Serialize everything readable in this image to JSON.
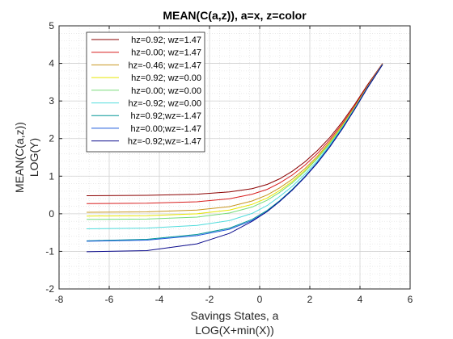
{
  "chart_data": {
    "type": "line",
    "title": "MEAN(C(a,z)), a=x, z=color",
    "xlabel": [
      "Savings States, a",
      "LOG(X+min(X))"
    ],
    "ylabel": [
      "MEAN(C(a,z))",
      "LOG(Y)"
    ],
    "xlim": [
      -8,
      6
    ],
    "ylim": [
      -2,
      5
    ],
    "xticks": [
      -8,
      -6,
      -4,
      -2,
      0,
      2,
      4,
      6
    ],
    "yticks": [
      -2,
      -1,
      0,
      1,
      2,
      3,
      4,
      5
    ],
    "grid": "on (major + minor)",
    "legend_position": "top-left",
    "x": [
      -6.9,
      -4.5,
      -2.5,
      -1.2,
      -0.3,
      0.3,
      0.8,
      1.3,
      1.8,
      2.3,
      2.8,
      3.3,
      3.8,
      4.3,
      4.9
    ],
    "series": [
      {
        "name": "hz=0.92; wz=1.47",
        "color": "#8b0000",
        "values": [
          0.48,
          0.49,
          0.52,
          0.58,
          0.67,
          0.78,
          0.93,
          1.13,
          1.38,
          1.68,
          2.03,
          2.45,
          2.92,
          3.43,
          4.0
        ]
      },
      {
        "name": "hz=0.00; wz=1.47",
        "color": "#d81e1e",
        "values": [
          0.27,
          0.28,
          0.32,
          0.4,
          0.52,
          0.65,
          0.82,
          1.03,
          1.29,
          1.6,
          1.97,
          2.4,
          2.88,
          3.4,
          3.99
        ]
      },
      {
        "name": "hz=-0.46; wz=1.47",
        "color": "#c8961e",
        "values": [
          0.04,
          0.05,
          0.1,
          0.19,
          0.34,
          0.5,
          0.69,
          0.92,
          1.2,
          1.53,
          1.92,
          2.36,
          2.85,
          3.38,
          3.98
        ]
      },
      {
        "name": "hz=0.92; wz=0.00",
        "color": "#e6e600",
        "values": [
          -0.06,
          -0.05,
          0.0,
          0.1,
          0.25,
          0.42,
          0.62,
          0.86,
          1.15,
          1.49,
          1.89,
          2.34,
          2.84,
          3.37,
          3.98
        ]
      },
      {
        "name": "hz=0.00; wz=0.00",
        "color": "#78dc78",
        "values": [
          -0.15,
          -0.14,
          -0.09,
          0.02,
          0.18,
          0.36,
          0.57,
          0.82,
          1.12,
          1.47,
          1.87,
          2.32,
          2.83,
          3.37,
          3.98
        ]
      },
      {
        "name": "hz=-0.92; wz=0.00",
        "color": "#50dcdc",
        "values": [
          -0.4,
          -0.38,
          -0.31,
          -0.18,
          0.01,
          0.22,
          0.46,
          0.73,
          1.05,
          1.41,
          1.83,
          2.3,
          2.81,
          3.36,
          3.97
        ]
      },
      {
        "name": "hz=0.92;wz=-1.47",
        "color": "#009696",
        "values": [
          -0.72,
          -0.68,
          -0.55,
          -0.38,
          -0.15,
          0.09,
          0.35,
          0.65,
          0.99,
          1.37,
          1.8,
          2.28,
          2.8,
          3.35,
          3.97
        ]
      },
      {
        "name": "hz=0.00;wz=-1.47",
        "color": "#1e5adc",
        "values": [
          -0.73,
          -0.7,
          -0.58,
          -0.41,
          -0.18,
          0.06,
          0.33,
          0.63,
          0.98,
          1.36,
          1.79,
          2.27,
          2.79,
          3.35,
          3.97
        ]
      },
      {
        "name": "hz=-0.92;wz=-1.47",
        "color": "#0a0a8c",
        "values": [
          -1.01,
          -0.98,
          -0.8,
          -0.52,
          -0.2,
          0.06,
          0.33,
          0.63,
          0.97,
          1.35,
          1.78,
          2.26,
          2.79,
          3.35,
          3.97
        ]
      }
    ]
  }
}
